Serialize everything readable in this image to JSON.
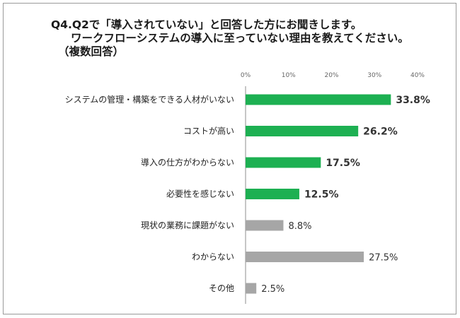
{
  "title": {
    "line1": "Q4.Q2で「導入されていない」と回答した方にお聞きします。",
    "line2": "ワークフローシステムの導入に至っていない理由を教えてください。",
    "line3": "（複数回答）"
  },
  "chart_data": {
    "type": "bar",
    "orientation": "horizontal",
    "categories": [
      "システムの管理・構築をできる人材がいない",
      "コストが高い",
      "導入の仕方がわからない",
      "必要性を感じない",
      "現状の業務に課題がない",
      "わからない",
      "その他"
    ],
    "values": [
      33.8,
      26.2,
      17.5,
      12.5,
      8.8,
      27.5,
      2.5
    ],
    "value_labels": [
      "33.8%",
      "26.2%",
      "17.5%",
      "12.5%",
      "8.8%",
      "27.5%",
      "2.5%"
    ],
    "bar_colors": [
      "#1db052",
      "#1db052",
      "#1db052",
      "#1db052",
      "#a6a6a6",
      "#a6a6a6",
      "#a6a6a6"
    ],
    "bold_labels": [
      true,
      true,
      true,
      true,
      false,
      false,
      false
    ],
    "xlim": [
      0,
      40
    ],
    "xticks": [
      0,
      10,
      20,
      30,
      40
    ],
    "xtick_labels": [
      "0%",
      "10%",
      "20%",
      "30%",
      "40%"
    ],
    "xaxis_position": "top",
    "grid": false,
    "legend": "none"
  }
}
